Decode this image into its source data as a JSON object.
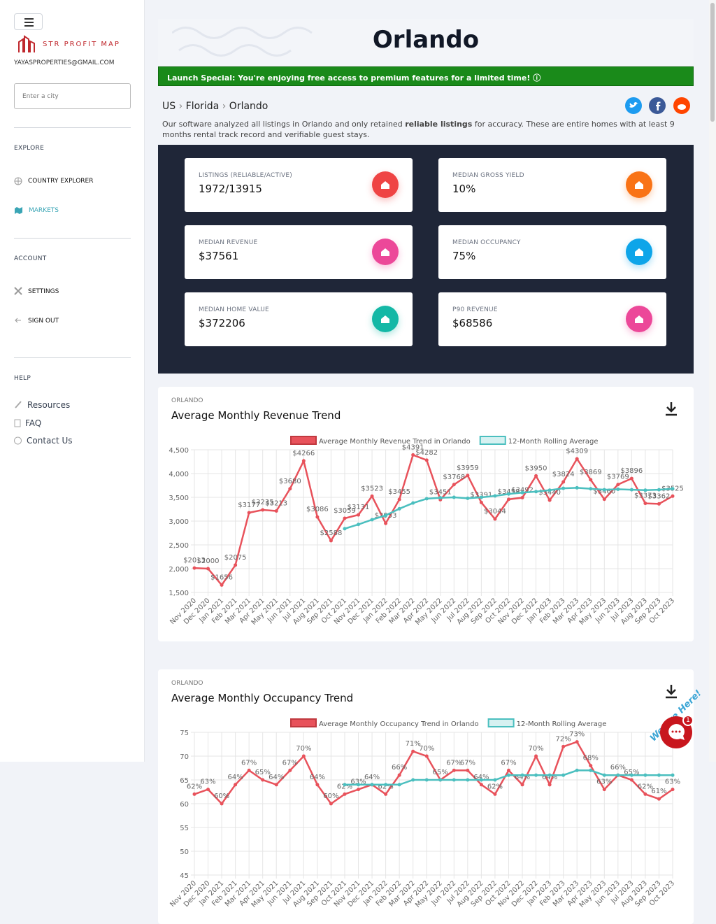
{
  "sidebar": {
    "brand": "STR PROFIT MAP",
    "email": "YAYASPROPERTIES@GMAIL.COM",
    "search_placeholder": "Enter a city",
    "sections": [
      {
        "title": "EXPLORE",
        "items": [
          "COUNTRY EXPLORER",
          "MARKETS"
        ]
      },
      {
        "title": "ACCOUNT",
        "items": [
          "SETTINGS",
          "SIGN OUT"
        ]
      },
      {
        "title": "HELP",
        "items": [
          "Resources",
          "FAQ",
          "Contact Us"
        ]
      }
    ]
  },
  "header": {
    "title": "Orlando",
    "banner": "Launch Special: You're enjoying free access to premium features for a limited time!"
  },
  "breadcrumb": [
    "US",
    "Florida",
    "Orlando"
  ],
  "intro": {
    "before": "Our software analyzed all listings in Orlando and only retained ",
    "bold": "reliable listings",
    "after": " for accuracy. These are entire homes with at least 9 months rental track record and verifiable guest stays."
  },
  "stats": [
    {
      "label": "LISTINGS (RELIABLE/ACTIVE)",
      "value": "1972/13915",
      "color": "#ef4444"
    },
    {
      "label": "MEDIAN GROSS YIELD",
      "value": "10%",
      "color": "#f97316"
    },
    {
      "label": "MEDIAN REVENUE",
      "value": "$37561",
      "color": "#ec4899"
    },
    {
      "label": "MEDIAN OCCUPANCY",
      "value": "75%",
      "color": "#0ea5e9"
    },
    {
      "label": "MEDIAN HOME VALUE",
      "value": "$372206",
      "color": "#14b8a6"
    },
    {
      "label": "P90 REVENUE",
      "value": "$68586",
      "color": "#ec4899"
    }
  ],
  "chat": {
    "label": "We Are Here!",
    "badge": "1"
  },
  "chart_data": [
    {
      "type": "line",
      "subtitle": "ORLANDO",
      "title": "Average Monthly Revenue Trend",
      "categories": [
        "Nov 2020",
        "Dec 2020",
        "Jan 2021",
        "Feb 2021",
        "Mar 2021",
        "Apr 2021",
        "May 2021",
        "Jun 2021",
        "Jul 2021",
        "Aug 2021",
        "Sep 2021",
        "Oct 2021",
        "Nov 2021",
        "Dec 2021",
        "Jan 2022",
        "Feb 2022",
        "Mar 2022",
        "Apr 2022",
        "May 2022",
        "Jun 2022",
        "Jul 2022",
        "Aug 2022",
        "Sep 2022",
        "Oct 2022",
        "Nov 2022",
        "Dec 2022",
        "Jan 2023",
        "Feb 2023",
        "Mar 2023",
        "Apr 2023",
        "May 2023",
        "Jun 2023",
        "Jul 2023",
        "Aug 2023",
        "Sep 2023",
        "Oct 2023"
      ],
      "series": [
        {
          "name": "Average Monthly Revenue Trend in Orlando",
          "color": "#e8525b",
          "values": [
            2013,
            2000,
            1656,
            2075,
            3177,
            3235,
            3213,
            3680,
            4266,
            3086,
            2588,
            3059,
            3131,
            3523,
            2953,
            3455,
            4391,
            4282,
            3451,
            3768,
            3959,
            3391,
            3044,
            3458,
            3492,
            3950,
            3440,
            3824,
            4309,
            3869,
            3460,
            3769,
            3896,
            3373,
            3362,
            3525
          ],
          "value_labels": [
            "$2013",
            "$2000",
            "$1656",
            "$2075",
            "$3177",
            "$3235",
            "$3213",
            "$3680",
            "$4266",
            "$3086",
            "$2588",
            "$3059",
            "$3131",
            "$3523",
            "$2953",
            "$3455",
            "$4391",
            "$4282",
            "$3451",
            "$3768",
            "$3959",
            "$3391",
            "$3044",
            "$3458",
            "$3492",
            "$3950",
            "$3440",
            "$3824",
            "$4309",
            "$3869",
            "$3460",
            "$3769",
            "$3896",
            "$3373",
            "$3362",
            "$3525"
          ]
        },
        {
          "name": "12-Month Rolling Average",
          "color": "#4bbfbf",
          "values": [
            null,
            null,
            null,
            null,
            null,
            null,
            null,
            null,
            null,
            null,
            null,
            2840,
            2930,
            3030,
            3120,
            3260,
            3380,
            3470,
            3490,
            3500,
            3480,
            3500,
            3530,
            3570,
            3600,
            3620,
            3650,
            3690,
            3700,
            3680,
            3660,
            3670,
            3660,
            3650,
            3660,
            3680
          ]
        }
      ],
      "ylim": [
        1500,
        4500
      ],
      "yticks": [
        {
          "value": 1500,
          "label": "1,500"
        },
        {
          "value": 2000,
          "label": "2,000"
        },
        {
          "value": 2500,
          "label": "2,500"
        },
        {
          "value": 3000,
          "label": "3,000"
        },
        {
          "value": 3500,
          "label": "3,500"
        },
        {
          "value": 4000,
          "label": "4,000"
        },
        {
          "value": 4500,
          "label": "4,500"
        }
      ],
      "grid": true
    },
    {
      "type": "line",
      "subtitle": "ORLANDO",
      "title": "Average Monthly Occupancy Trend",
      "categories": [
        "Nov 2020",
        "Dec 2020",
        "Jan 2021",
        "Feb 2021",
        "Mar 2021",
        "Apr 2021",
        "May 2021",
        "Jun 2021",
        "Jul 2021",
        "Aug 2021",
        "Sep 2021",
        "Oct 2021",
        "Nov 2021",
        "Dec 2021",
        "Jan 2022",
        "Feb 2022",
        "Mar 2022",
        "Apr 2022",
        "May 2022",
        "Jun 2022",
        "Jul 2022",
        "Aug 2022",
        "Sep 2022",
        "Oct 2022",
        "Nov 2022",
        "Dec 2022",
        "Jan 2023",
        "Feb 2023",
        "Mar 2023",
        "Apr 2023",
        "May 2023",
        "Jun 2023",
        "Jul 2023",
        "Aug 2023",
        "Sep 2023",
        "Oct 2023"
      ],
      "series": [
        {
          "name": "Average Monthly Occupancy Trend in Orlando",
          "color": "#e8525b",
          "values": [
            62,
            63,
            60,
            64,
            67,
            65,
            64,
            67,
            70,
            64,
            60,
            62,
            63,
            64,
            62,
            66,
            71,
            70,
            65,
            67,
            67,
            64,
            62,
            67,
            64,
            70,
            64,
            72,
            73,
            68,
            63,
            66,
            65,
            62,
            61,
            63
          ],
          "value_labels": [
            "62%",
            "63%",
            "60%",
            "64%",
            "67%",
            "65%",
            "64%",
            "67%",
            "70%",
            "64%",
            "60%",
            "62%",
            "63%",
            "64%",
            "62%",
            "66%",
            "71%",
            "70%",
            "65%",
            "67%",
            "67%",
            "64%",
            "62%",
            "67%",
            "64%",
            "70%",
            "64%",
            "72%",
            "73%",
            "68%",
            "63%",
            "66%",
            "65%",
            "62%",
            "61%",
            "63%"
          ]
        },
        {
          "name": "12-Month Rolling Average",
          "color": "#4bbfbf",
          "values": [
            null,
            null,
            null,
            null,
            null,
            null,
            null,
            null,
            null,
            null,
            null,
            64,
            64,
            64,
            64,
            64,
            65,
            65,
            65,
            65,
            65,
            65,
            65,
            66,
            66,
            66,
            66,
            66,
            67,
            67,
            66,
            66,
            66,
            66,
            66,
            66
          ]
        }
      ],
      "ylim": [
        45,
        75
      ],
      "yticks": [
        45,
        50,
        55,
        60,
        65,
        70,
        75
      ],
      "grid": true
    }
  ]
}
